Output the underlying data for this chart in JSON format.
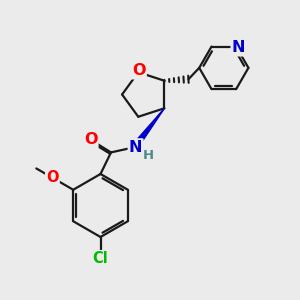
{
  "bg_color": "#ebebeb",
  "bond_color": "#1a1a1a",
  "bond_width": 1.6,
  "atom_colors": {
    "O": "#ff0000",
    "N": "#0000cc",
    "Cl": "#00bb00",
    "C": "#1a1a1a",
    "H": "#4a8a8a"
  },
  "font_size_atom": 10.5,
  "font_size_H": 9.5
}
